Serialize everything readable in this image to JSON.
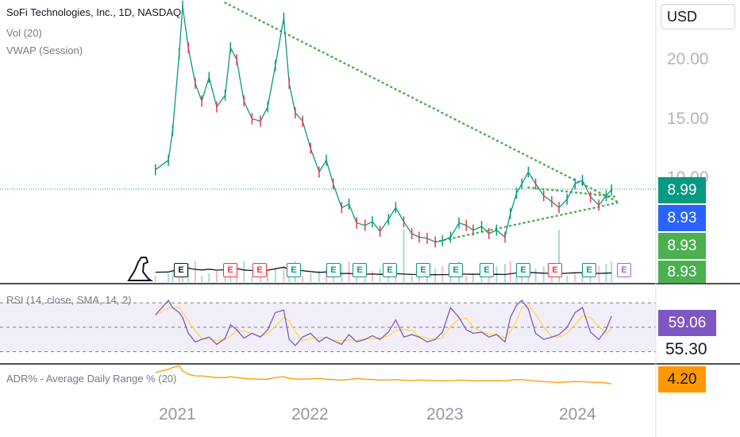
{
  "header": {
    "symbol_line": "SoFi Technologies, Inc., 1D, NASDAQ",
    "indicator_1": "Vol (20)",
    "indicator_2": "VWAP (Session)"
  },
  "currency": "USD",
  "price_axis": {
    "labels": [
      "20.00",
      "15.00",
      "10.00"
    ],
    "tags": [
      {
        "text": "8.99",
        "color": "#089981"
      },
      {
        "text": "8.93",
        "color": "#2962ff"
      },
      {
        "text": "8.93",
        "color": "#4caf50"
      },
      {
        "text": "8.93",
        "color": "#4caf50"
      }
    ]
  },
  "rsi_panel": {
    "label": "RSI (14, close, SMA, 14, 2)",
    "value_tag": {
      "text": "59.06",
      "color": "#7e57c2"
    },
    "ma_text": "55.30"
  },
  "adr_panel": {
    "label": "ADR% - Average Daily Range % (20)",
    "value_tag": {
      "text": "4.20",
      "color": "#ff9800"
    }
  },
  "time_axis": {
    "labels": [
      "2021",
      "2022",
      "2023",
      "2024"
    ]
  },
  "earnings_markers": [
    "E",
    "E",
    "E",
    "E",
    "E",
    "E",
    "E",
    "E",
    "E",
    "E",
    "E",
    "E",
    "E",
    "E"
  ],
  "colors": {
    "up": "#089981",
    "down": "#f23645",
    "trendline": "#4caf50",
    "rsi_line": "#7e57c2",
    "rsi_ma": "#fdd835",
    "adr": "#ff9800",
    "vwap": "#131722"
  },
  "chart_data": {
    "type": "line",
    "title": "SoFi Technologies, Inc., 1D, NASDAQ",
    "x": [
      "2020-12-01",
      "2021-01-04",
      "2021-01-15",
      "2021-02-01",
      "2021-02-10",
      "2021-02-25",
      "2021-03-15",
      "2021-04-01",
      "2021-04-20",
      "2021-05-10",
      "2021-06-01",
      "2021-06-15",
      "2021-07-01",
      "2021-07-20",
      "2021-08-10",
      "2021-09-01",
      "2021-09-20",
      "2021-10-10",
      "2021-11-01",
      "2021-11-15",
      "2021-12-01",
      "2021-12-20",
      "2022-01-10",
      "2022-02-01",
      "2022-02-20",
      "2022-03-10",
      "2022-04-01",
      "2022-04-20",
      "2022-05-10",
      "2022-06-01",
      "2022-06-20",
      "2022-07-10",
      "2022-08-01",
      "2022-08-20",
      "2022-09-10",
      "2022-10-01",
      "2022-10-20",
      "2022-11-10",
      "2022-12-01",
      "2022-12-20",
      "2023-01-10",
      "2023-02-01",
      "2023-02-20",
      "2023-03-10",
      "2023-04-01",
      "2023-04-20",
      "2023-05-10",
      "2023-06-01",
      "2023-06-15",
      "2023-07-01",
      "2023-07-15",
      "2023-08-01",
      "2023-08-20",
      "2023-09-10",
      "2023-10-01",
      "2023-10-20",
      "2023-11-10",
      "2023-12-01",
      "2023-12-20",
      "2024-01-10",
      "2024-02-01",
      "2024-02-20",
      "2024-03-05"
    ],
    "series": [
      {
        "values": [
          10.7,
          11.5,
          14.0,
          20.5,
          24.5,
          21.0,
          18.0,
          16.5,
          18.5,
          16.0,
          17.0,
          21.0,
          20.0,
          16.5,
          15.0,
          14.8,
          16.0,
          19.5,
          23.5,
          18.0,
          15.5,
          14.8,
          12.5,
          10.5,
          11.5,
          9.5,
          7.5,
          7.8,
          6.2,
          6.0,
          6.3,
          5.5,
          6.5,
          7.5,
          6.3,
          5.3,
          5.0,
          4.9,
          4.6,
          4.7,
          5.0,
          6.2,
          6.0,
          5.6,
          5.9,
          5.3,
          5.6,
          5.0,
          7.0,
          8.7,
          9.5,
          10.5,
          9.5,
          8.5,
          8.0,
          7.5,
          8.2,
          9.5,
          9.8,
          8.4,
          7.7,
          8.5,
          8.99
        ]
      }
    ],
    "ylim": [
      3.5,
      26
    ],
    "xlabel": "",
    "ylabel": "",
    "rsi": {
      "values": [
        60,
        72,
        66,
        62,
        58,
        45,
        38,
        40,
        42,
        36,
        41,
        52,
        48,
        41,
        45,
        42,
        48,
        62,
        64,
        40,
        35,
        42,
        45,
        38,
        42,
        39,
        36,
        44,
        38,
        40,
        43,
        40,
        46,
        56,
        42,
        44,
        42,
        38,
        40,
        46,
        66,
        58,
        48,
        45,
        46,
        42,
        44,
        38,
        58,
        68,
        72,
        65,
        45,
        40,
        42,
        44,
        50,
        62,
        66,
        46,
        40,
        48,
        59.06
      ],
      "ma_last": 55.3,
      "ylim": [
        20,
        85
      ]
    },
    "adr": {
      "values": [
        11,
        13,
        14,
        15,
        12,
        10,
        9,
        9,
        8.5,
        8,
        8,
        8.5,
        8,
        7.5,
        7.2,
        7,
        7,
        8,
        8.5,
        7.5,
        7.2,
        7,
        7.2,
        7.5,
        7,
        6.8,
        6.5,
        6.8,
        7.5,
        7,
        6.8,
        6.5,
        6.6,
        6.8,
        6.4,
        6.2,
        6.5,
        6.4,
        6.2,
        6.1,
        6.2,
        6.5,
        6.4,
        6,
        6.2,
        6.1,
        6.3,
        6,
        6.5,
        6.8,
        6.7,
        6.4,
        6,
        5.5,
        5.3,
        5.1,
        5.4,
        5.6,
        5.5,
        5.2,
        5.0,
        4.8,
        4.2
      ],
      "ylim": [
        0,
        16
      ]
    }
  }
}
